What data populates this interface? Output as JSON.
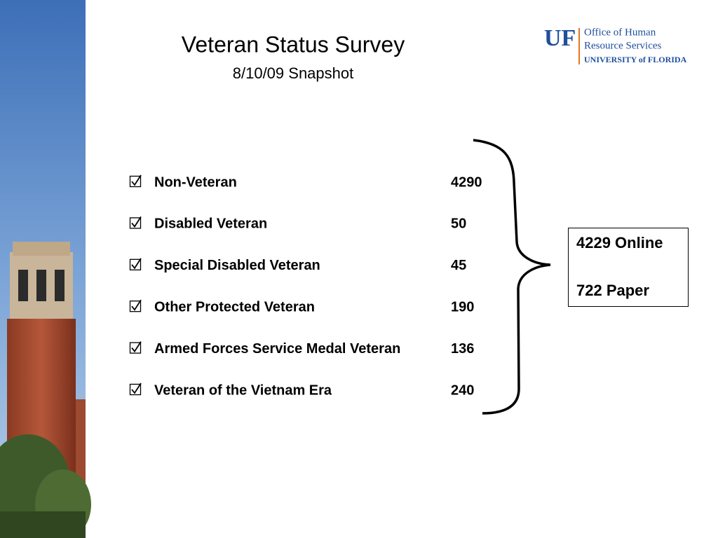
{
  "header": {
    "title": "Veteran Status Survey",
    "subtitle": "8/10/09 Snapshot"
  },
  "logo": {
    "mark": "UF",
    "line1": "Office of Human",
    "line2": "Resource Services",
    "line3": "UNIVERSITY of FLORIDA"
  },
  "items": [
    {
      "label": "Non-Veteran",
      "value": 4290
    },
    {
      "label": "Disabled Veteran",
      "value": 50
    },
    {
      "label": "Special Disabled Veteran",
      "value": 45
    },
    {
      "label": "Other Protected Veteran",
      "value": 190
    },
    {
      "label": "Armed Forces Service Medal Veteran",
      "value": 136
    },
    {
      "label": "Veteran of the Vietnam Era",
      "value": 240
    }
  ],
  "summary": [
    "4229 Online",
    "722 Paper"
  ]
}
